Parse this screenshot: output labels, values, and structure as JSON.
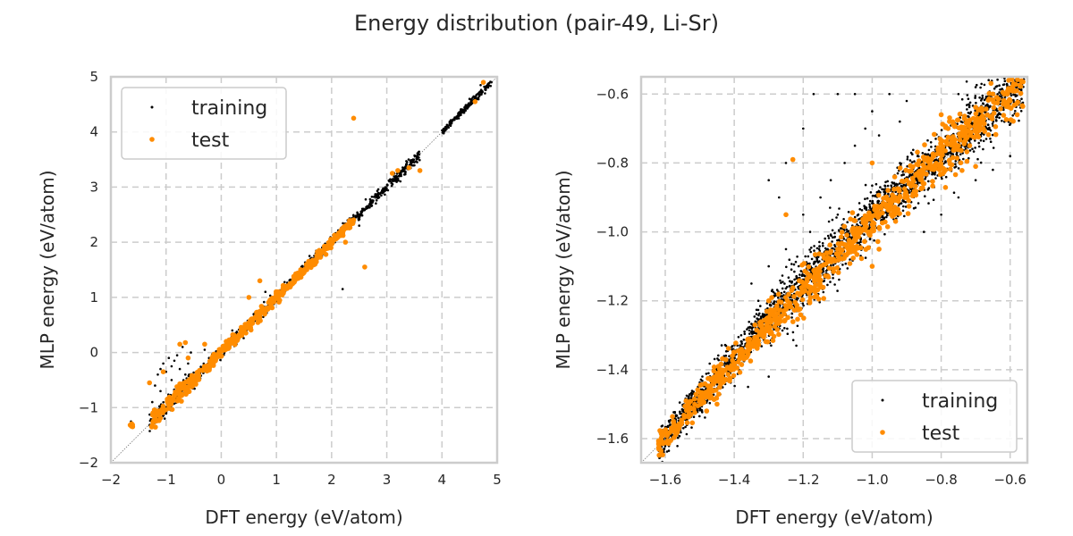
{
  "title": "Energy distribution (pair-49, Li-Sr)",
  "colors": {
    "training": "#000000",
    "test": "#ff8c00",
    "grid": "#cccccc",
    "frame": "#cccccc",
    "diagonal": "#777777"
  },
  "chart_data": [
    {
      "type": "scatter",
      "xlabel": "DFT energy (eV/atom)",
      "ylabel": "MLP energy (eV/atom)",
      "xlim": [
        -2,
        5
      ],
      "ylim": [
        -2,
        5
      ],
      "xticks": [
        -2,
        -1,
        0,
        1,
        2,
        3,
        4,
        5
      ],
      "yticks": [
        -2,
        -1,
        0,
        1,
        2,
        3,
        4,
        5
      ],
      "xtick_labels": [
        "−2",
        "−1",
        "0",
        "1",
        "2",
        "3",
        "4",
        "5"
      ],
      "ytick_labels": [
        "−2",
        "−1",
        "0",
        "1",
        "2",
        "3",
        "4",
        "5"
      ],
      "grid": true,
      "legend": "top-left",
      "legend_entries": [
        "training",
        "test"
      ],
      "series": [
        {
          "name": "training",
          "color": "#000000",
          "segments": [
            [
              -1.65,
              -1.6,
              -1.3,
              -1.3,
              0.04
            ],
            [
              -1.3,
              -0.5,
              -1.3,
              -0.45,
              0.08
            ],
            [
              -0.5,
              1.0,
              -0.5,
              1.0,
              0.05
            ],
            [
              1.0,
              2.4,
              1.0,
              2.45,
              0.04
            ],
            [
              2.4,
              3.6,
              2.4,
              3.6,
              0.05
            ],
            [
              4.0,
              4.9,
              4.0,
              4.9,
              0.03
            ]
          ],
          "points": [
            [
              -1.2,
              -0.6
            ],
            [
              -1.15,
              -0.4
            ],
            [
              -1.1,
              -0.3
            ],
            [
              -1.05,
              -0.2
            ],
            [
              -1.0,
              -0.35
            ],
            [
              -0.95,
              -0.1
            ],
            [
              -0.9,
              -0.25
            ],
            [
              -0.85,
              -0.15
            ],
            [
              -0.8,
              -0.05
            ],
            [
              -0.75,
              -0.3
            ],
            [
              -0.7,
              0.1
            ],
            [
              -0.65,
              -0.4
            ],
            [
              -0.6,
              -0.2
            ],
            [
              -1.25,
              -0.9
            ],
            [
              -1.1,
              -0.7
            ],
            [
              -0.9,
              -0.5
            ],
            [
              -0.55,
              0.0
            ],
            [
              -0.3,
              0.05
            ],
            [
              0.2,
              0.4
            ],
            [
              0.8,
              1.1
            ],
            [
              1.6,
              1.75
            ],
            [
              2.2,
              1.15
            ],
            [
              2.5,
              2.3
            ],
            [
              2.9,
              2.85
            ],
            [
              3.5,
              3.45
            ],
            [
              4.5,
              4.6
            ],
            [
              4.7,
              4.85
            ]
          ],
          "count": 1100
        },
        {
          "name": "test",
          "color": "#ff8c00",
          "segments": [
            [
              -1.65,
              -1.6,
              -1.3,
              -1.3,
              0.04
            ],
            [
              -1.3,
              -0.5,
              -1.3,
              -0.5,
              0.08
            ],
            [
              -0.5,
              1.0,
              -0.5,
              1.0,
              0.05
            ],
            [
              1.0,
              2.4,
              1.0,
              2.4,
              0.04
            ]
          ],
          "points": [
            [
              -1.3,
              -0.55
            ],
            [
              -1.05,
              -0.35
            ],
            [
              -0.75,
              0.15
            ],
            [
              -0.65,
              0.18
            ],
            [
              -0.6,
              -0.1
            ],
            [
              -0.3,
              0.15
            ],
            [
              0.5,
              1.0
            ],
            [
              0.7,
              1.3
            ],
            [
              1.5,
              1.45
            ],
            [
              1.7,
              1.6
            ],
            [
              2.2,
              2.15
            ],
            [
              2.25,
              2.0
            ],
            [
              2.4,
              4.25
            ],
            [
              2.6,
              1.55
            ],
            [
              3.1,
              3.25
            ],
            [
              3.2,
              3.3
            ],
            [
              3.4,
              3.35
            ],
            [
              3.6,
              3.3
            ],
            [
              4.6,
              4.55
            ],
            [
              4.75,
              4.9
            ]
          ],
          "count": 450
        }
      ]
    },
    {
      "type": "scatter",
      "xlabel": "DFT energy (eV/atom)",
      "ylabel": "MLP energy (eV/atom)",
      "xlim": [
        -1.67,
        -0.55
      ],
      "ylim": [
        -1.67,
        -0.55
      ],
      "xticks": [
        -1.6,
        -1.4,
        -1.2,
        -1.0,
        -0.8,
        -0.6
      ],
      "yticks": [
        -1.6,
        -1.4,
        -1.2,
        -1.0,
        -0.8,
        -0.6
      ],
      "xtick_labels": [
        "−1.6",
        "−1.4",
        "−1.2",
        "−1.0",
        "−0.8",
        "−0.6"
      ],
      "ytick_labels": [
        "−1.6",
        "−1.4",
        "−1.2",
        "−1.0",
        "−0.8",
        "−0.6"
      ],
      "grid": true,
      "legend": "bottom-right",
      "legend_entries": [
        "training",
        "test"
      ],
      "series": [
        {
          "name": "training",
          "color": "#000000",
          "segments": [
            [
              -1.62,
              -1.3,
              -1.62,
              -1.25,
              0.025
            ],
            [
              -1.3,
              -1.0,
              -1.25,
              -0.95,
              0.04
            ],
            [
              -1.0,
              -0.8,
              -0.95,
              -0.78,
              0.035
            ],
            [
              -0.8,
              -0.56,
              -0.78,
              -0.56,
              0.045
            ]
          ],
          "points": [
            [
              -1.35,
              -1.15
            ],
            [
              -1.33,
              -1.2
            ],
            [
              -1.3,
              -1.1
            ],
            [
              -1.28,
              -1.25
            ],
            [
              -1.25,
              -1.05
            ],
            [
              -1.22,
              -1.15
            ],
            [
              -1.2,
              -0.95
            ],
            [
              -1.18,
              -1.0
            ],
            [
              -1.15,
              -0.9
            ],
            [
              -1.12,
              -0.85
            ],
            [
              -1.1,
              -0.95
            ],
            [
              -1.08,
              -0.8
            ],
            [
              -1.05,
              -0.75
            ],
            [
              -1.02,
              -0.7
            ],
            [
              -1.0,
              -0.65
            ],
            [
              -0.98,
              -0.72
            ],
            [
              -0.95,
              -0.6
            ],
            [
              -0.92,
              -0.68
            ],
            [
              -0.9,
              -0.62
            ],
            [
              -1.25,
              -0.8
            ],
            [
              -1.2,
              -0.7
            ],
            [
              -1.17,
              -0.6
            ],
            [
              -1.1,
              -0.6
            ],
            [
              -1.05,
              -0.6
            ],
            [
              -1.3,
              -0.85
            ],
            [
              -1.27,
              -0.9
            ],
            [
              -1.38,
              -1.3
            ],
            [
              -1.4,
              -1.35
            ],
            [
              -1.45,
              -1.4
            ],
            [
              -1.36,
              -1.45
            ],
            [
              -1.3,
              -1.42
            ],
            [
              -1.22,
              -1.33
            ],
            [
              -0.85,
              -1.0
            ],
            [
              -0.8,
              -0.95
            ],
            [
              -0.75,
              -0.9
            ],
            [
              -0.7,
              -0.85
            ],
            [
              -0.65,
              -0.82
            ],
            [
              -0.6,
              -0.78
            ],
            [
              -0.75,
              -0.6
            ],
            [
              -0.7,
              -0.58
            ]
          ],
          "count": 2400
        },
        {
          "name": "test",
          "color": "#ff8c00",
          "segments": [
            [
              -1.62,
              -1.3,
              -1.62,
              -1.27,
              0.02
            ],
            [
              -1.3,
              -1.0,
              -1.27,
              -0.97,
              0.03
            ],
            [
              -1.0,
              -0.8,
              -0.97,
              -0.78,
              0.03
            ],
            [
              -0.8,
              -0.56,
              -0.78,
              -0.56,
              0.04
            ]
          ],
          "points": [
            [
              -1.25,
              -0.95
            ],
            [
              -1.23,
              -0.79
            ],
            [
              -1.0,
              -0.8
            ],
            [
              -0.9,
              -0.85
            ],
            [
              -0.7,
              -0.81
            ],
            [
              -0.75,
              -0.75
            ],
            [
              -0.78,
              -0.7
            ],
            [
              -0.8,
              -0.66
            ],
            [
              -0.92,
              -0.9
            ],
            [
              -1.05,
              -1.02
            ],
            [
              -1.1,
              -1.05
            ],
            [
              -1.3,
              -1.2
            ],
            [
              -1.34,
              -1.27
            ],
            [
              -1.45,
              -1.5
            ],
            [
              -1.48,
              -1.52
            ],
            [
              -0.6,
              -0.62
            ],
            [
              -0.65,
              -0.6
            ],
            [
              -1.0,
              -1.1
            ],
            [
              -0.98,
              -1.05
            ],
            [
              -1.15,
              -1.1
            ]
          ],
          "count": 900
        }
      ]
    }
  ]
}
